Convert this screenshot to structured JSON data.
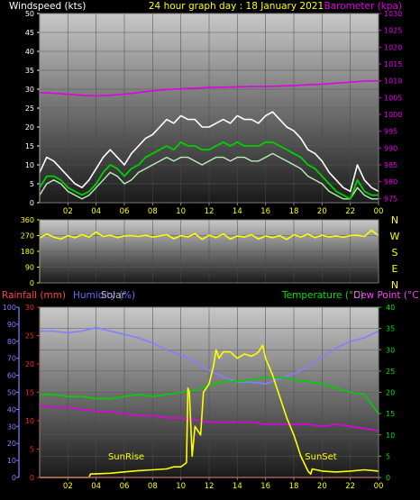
{
  "header": {
    "left_label": "Windspeed (kts)",
    "title": "24 hour graph day : 18 January 2021",
    "right_label": "Barometer (kpa)"
  },
  "colors": {
    "background": "#000000",
    "wind_gust": "#ffffff",
    "wind_speed": "#b8f0b8",
    "wind_avg": "#00d000",
    "barometer": "#e000e0",
    "direction": "#ffff00",
    "rainfall": "#ff2020",
    "humidity": "#8080ff",
    "solar": "#ffff00",
    "temperature": "#00d000",
    "dew_point": "#e000e0",
    "rainfall_label": "#ff4040",
    "humidity_label": "#6a6aff",
    "solar_label": "#b0b0b0",
    "temperature_label": "#00e000",
    "dew_point_label": "#ff40ff"
  },
  "x_ticks": [
    "02",
    "04",
    "06",
    "08",
    "10",
    "12",
    "14",
    "16",
    "18",
    "20",
    "22",
    "00"
  ],
  "bottom_legend": {
    "rainfall": "Rainfall (mm)",
    "humidity": "Humidity (%)",
    "solar": "Solar",
    "temperature": "Temperature (°C)",
    "dew_point": "Dew Point (°C)"
  },
  "annotations": {
    "sunrise": "SunRise",
    "sunset": "SunSet"
  },
  "chart_data": [
    {
      "type": "line",
      "xlim": [
        0,
        24
      ],
      "left_axis": {
        "ticks": [
          0,
          5,
          10,
          15,
          20,
          25,
          30,
          35,
          40,
          45,
          50
        ],
        "ylim": [
          0,
          50
        ]
      },
      "right_axis": {
        "ticks": [
          975,
          980,
          985,
          990,
          995,
          1000,
          1005,
          1010,
          1015,
          1020,
          1025,
          1030
        ],
        "ylim": [
          973.75,
          1030
        ]
      },
      "series": [
        {
          "key": "gust",
          "axis": "left",
          "x": [
            0,
            0.5,
            1,
            1.5,
            2,
            2.5,
            3,
            3.5,
            4,
            4.5,
            5,
            5.5,
            6,
            6.5,
            7,
            7.5,
            8,
            8.5,
            9,
            9.5,
            10,
            10.5,
            11,
            11.5,
            12,
            12.5,
            13,
            13.5,
            14,
            14.5,
            15,
            15.5,
            16,
            16.5,
            17,
            17.5,
            18,
            18.5,
            19,
            19.5,
            20,
            20.5,
            21,
            21.5,
            22,
            22.5,
            23,
            23.5,
            24
          ],
          "y": [
            8,
            12,
            11,
            9,
            7,
            5,
            4,
            6,
            9,
            12,
            14,
            12,
            10,
            13,
            15,
            17,
            18,
            20,
            22,
            21,
            23,
            22,
            22,
            20,
            20,
            21,
            22,
            21,
            23,
            22,
            22,
            21,
            23,
            24,
            22,
            20,
            19,
            17,
            14,
            13,
            11,
            8,
            6,
            4,
            3,
            10,
            6,
            4,
            3
          ]
        },
        {
          "key": "speed",
          "axis": "left",
          "x": [
            0,
            0.5,
            1,
            1.5,
            2,
            2.5,
            3,
            3.5,
            4,
            4.5,
            5,
            5.5,
            6,
            6.5,
            7,
            7.5,
            8,
            8.5,
            9,
            9.5,
            10,
            10.5,
            11,
            11.5,
            12,
            12.5,
            13,
            13.5,
            14,
            14.5,
            15,
            15.5,
            16,
            16.5,
            17,
            17.5,
            18,
            18.5,
            19,
            19.5,
            20,
            20.5,
            21,
            21.5,
            22,
            22.5,
            23,
            23.5,
            24
          ],
          "y": [
            2,
            5,
            6,
            5,
            3,
            2,
            1,
            2,
            4,
            6,
            8,
            7,
            5,
            6,
            8,
            9,
            10,
            11,
            12,
            11,
            12,
            12,
            11,
            10,
            11,
            12,
            12,
            11,
            12,
            12,
            11,
            11,
            12,
            13,
            12,
            11,
            10,
            9,
            7,
            6,
            5,
            3,
            2,
            1,
            1,
            4,
            2,
            1,
            1
          ]
        },
        {
          "key": "average",
          "axis": "left",
          "x": [
            0,
            0.5,
            1,
            1.5,
            2,
            2.5,
            3,
            3.5,
            4,
            4.5,
            5,
            5.5,
            6,
            6.5,
            7,
            7.5,
            8,
            8.5,
            9,
            9.5,
            10,
            10.5,
            11,
            11.5,
            12,
            12.5,
            13,
            13.5,
            14,
            14.5,
            15,
            15.5,
            16,
            16.5,
            17,
            17.5,
            18,
            18.5,
            19,
            19.5,
            20,
            20.5,
            21,
            21.5,
            22,
            22.5,
            23,
            23.5,
            24
          ],
          "y": [
            4,
            7,
            7,
            6,
            4,
            3,
            2,
            3,
            5,
            8,
            10,
            9,
            7,
            9,
            10,
            12,
            13,
            14,
            15,
            14,
            16,
            15,
            15,
            14,
            14,
            15,
            16,
            15,
            16,
            15,
            15,
            15,
            16,
            16,
            15,
            14,
            13,
            12,
            10,
            9,
            7,
            5,
            3,
            2,
            1,
            6,
            3,
            2,
            2
          ]
        },
        {
          "key": "barometer",
          "axis": "right",
          "x": [
            0,
            1,
            2,
            3,
            4,
            5,
            6,
            7,
            8,
            9,
            10,
            11,
            12,
            13,
            14,
            15,
            16,
            17,
            18,
            19,
            20,
            21,
            22,
            23,
            24
          ],
          "y": [
            1006.5,
            1006.3,
            1006.0,
            1005.7,
            1005.5,
            1005.7,
            1006.0,
            1006.5,
            1007.0,
            1007.4,
            1007.6,
            1007.8,
            1008.0,
            1008.1,
            1008.2,
            1008.3,
            1008.3,
            1008.4,
            1008.6,
            1008.8,
            1009.0,
            1009.3,
            1009.6,
            1009.9,
            1010.0
          ]
        }
      ]
    },
    {
      "type": "line",
      "xlim": [
        0,
        24
      ],
      "left_axis": {
        "ticks": [
          0,
          90,
          180,
          270,
          360
        ],
        "ylim": [
          0,
          360
        ]
      },
      "right_axis_labels": [
        "N",
        "W",
        "S",
        "E",
        "N"
      ],
      "series": [
        {
          "key": "direction",
          "axis": "left",
          "x": [
            0,
            0.5,
            1,
            1.5,
            2,
            2.5,
            3,
            3.5,
            4,
            4.5,
            5,
            5.5,
            6,
            6.5,
            7,
            7.5,
            8,
            8.5,
            9,
            9.5,
            10,
            10.5,
            11,
            11.5,
            12,
            12.5,
            13,
            13.5,
            14,
            14.5,
            15,
            15.5,
            16,
            16.5,
            17,
            17.5,
            18,
            18.5,
            19,
            19.5,
            20,
            20.5,
            21,
            21.5,
            22,
            22.5,
            23,
            23.5,
            24
          ],
          "y": [
            255,
            280,
            262,
            250,
            270,
            258,
            275,
            262,
            290,
            265,
            272,
            258,
            268,
            270,
            265,
            272,
            262,
            268,
            275,
            252,
            270,
            262,
            282,
            248,
            272,
            258,
            280,
            250,
            268,
            262,
            275,
            250,
            268,
            258,
            270,
            248,
            275,
            262,
            278,
            258,
            272,
            262,
            268,
            260,
            270,
            272,
            265,
            300,
            270
          ]
        }
      ]
    },
    {
      "type": "line",
      "xlim": [
        0,
        24
      ],
      "left_axis_outer": {
        "label": "Humidity (%)",
        "ticks": [
          0,
          10,
          20,
          30,
          40,
          50,
          60,
          70,
          80,
          90,
          100
        ],
        "ylim": [
          0,
          100
        ]
      },
      "left_axis_inner": {
        "label": "Rainfall (mm)",
        "ticks": [
          0,
          5,
          10,
          15,
          20,
          25,
          30
        ],
        "ylim": [
          0,
          30
        ]
      },
      "right_axis": {
        "label": "Temperature (°C)",
        "ticks": [
          0,
          5,
          10,
          15,
          20,
          25,
          30,
          35,
          40
        ],
        "ylim": [
          0,
          40
        ]
      },
      "series": [
        {
          "key": "humidity",
          "axis": "outer",
          "x": [
            0,
            1,
            2,
            3,
            4,
            5,
            6,
            7,
            8,
            9,
            10,
            11,
            12,
            13,
            14,
            15,
            16,
            17,
            18,
            19,
            20,
            21,
            22,
            23,
            24
          ],
          "y": [
            86,
            86,
            85,
            86,
            88,
            86,
            84,
            82,
            79,
            75,
            72,
            68,
            63,
            59,
            56,
            56,
            55,
            58,
            61,
            65,
            71,
            76,
            80,
            82,
            86
          ]
        },
        {
          "key": "temperature",
          "axis": "right",
          "x": [
            0,
            1,
            2,
            3,
            4,
            5,
            6,
            7,
            8,
            9,
            10,
            11,
            12,
            13,
            14,
            15,
            16,
            17,
            18,
            19,
            20,
            21,
            22,
            23,
            24
          ],
          "y": [
            19.5,
            19.5,
            19.0,
            19.0,
            18.5,
            18.5,
            19.0,
            19.5,
            19.0,
            19.5,
            20.0,
            20.5,
            21.5,
            22.5,
            22.5,
            23.0,
            23.5,
            23.5,
            23.0,
            22.5,
            22.0,
            21.0,
            20.0,
            19.5,
            15.0
          ]
        },
        {
          "key": "dew_point",
          "axis": "right",
          "x": [
            0,
            1,
            2,
            3,
            4,
            5,
            6,
            7,
            8,
            9,
            10,
            11,
            12,
            13,
            14,
            15,
            16,
            17,
            18,
            19,
            20,
            21,
            22,
            23,
            24
          ],
          "y": [
            17.0,
            16.5,
            16.5,
            16.0,
            15.5,
            15.5,
            15.0,
            14.5,
            14.5,
            14.0,
            14.0,
            13.5,
            13.0,
            13.0,
            13.0,
            13.0,
            12.5,
            12.5,
            12.5,
            12.5,
            12.0,
            12.5,
            12.0,
            11.5,
            11.0
          ]
        },
        {
          "key": "solar",
          "axis": "right",
          "x": [
            0,
            3.5,
            3.6,
            5,
            7,
            8,
            9,
            9.5,
            10,
            10.4,
            10.5,
            10.6,
            10.8,
            11,
            11.4,
            11.6,
            11.8,
            12,
            12.3,
            12.5,
            12.7,
            13,
            13.5,
            14,
            14.5,
            15,
            15.3,
            15.5,
            15.8,
            16,
            16.5,
            17,
            17.5,
            18,
            18.5,
            19,
            19.2,
            19.3,
            20,
            21,
            22,
            23,
            24
          ],
          "y": [
            0,
            0,
            0.8,
            1.0,
            1.6,
            1.8,
            2.0,
            2.5,
            2.5,
            3.5,
            21.0,
            20.0,
            5.0,
            12.0,
            10.0,
            20.0,
            21.0,
            22.0,
            26.0,
            30.0,
            28.0,
            29.5,
            29.5,
            28.0,
            29.0,
            28.5,
            29.0,
            29.5,
            31.0,
            28.0,
            24.0,
            19.0,
            14.0,
            10.0,
            5.0,
            1.5,
            0.8,
            2.0,
            1.5,
            1.3,
            1.5,
            1.8,
            1.5
          ]
        },
        {
          "key": "rainfall",
          "axis": "inner",
          "x": [
            0,
            24
          ],
          "y": [
            0,
            0
          ]
        }
      ]
    }
  ]
}
